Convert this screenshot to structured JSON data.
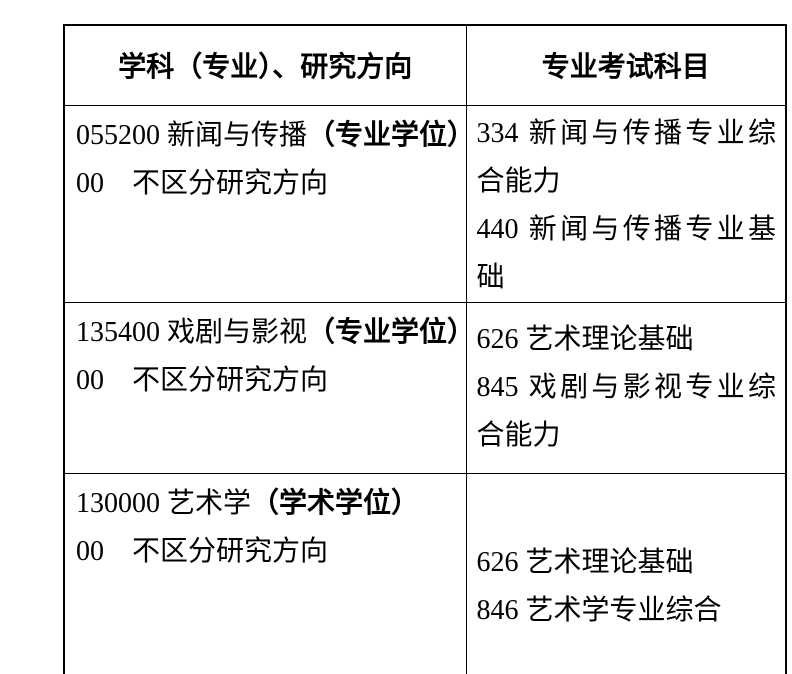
{
  "page": {
    "background_color": "#ffffff",
    "text_color": "#000000",
    "border_color": "#000000"
  },
  "table": {
    "columns": [
      "学科（专业）、研究方向",
      "专业考试科目"
    ],
    "rows": [
      {
        "program": "055200 新闻与传播",
        "degree_type": "（专业学位）",
        "direction": "00　不区分研究方向",
        "subjects": [
          "334 新闻与传播专业综合能力",
          "440 新闻与传播专业基础"
        ]
      },
      {
        "program": "135400 戏剧与影视",
        "degree_type": "（专业学位）",
        "direction": "00　不区分研究方向",
        "subjects": [
          "626 艺术理论基础",
          "845 戏剧与影视专业综合能力"
        ]
      },
      {
        "program": "130000 艺术学",
        "degree_type": "（学术学位）",
        "direction": "00　不区分研究方向",
        "subjects": [
          "626 艺术理论基础",
          "846 艺术学专业综合"
        ]
      }
    ]
  }
}
